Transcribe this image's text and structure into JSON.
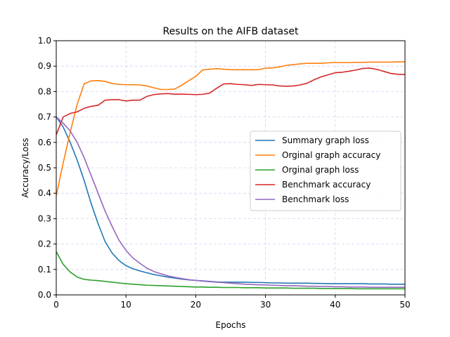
{
  "chart_data": {
    "type": "line",
    "title": "Results on the AIFB dataset",
    "xlabel": "Epochs",
    "ylabel": "Accuracy/Loss",
    "xlim": [
      0,
      50
    ],
    "ylim": [
      0.0,
      1.0
    ],
    "xticks": [
      0,
      10,
      20,
      30,
      40,
      50
    ],
    "yticks": [
      0.0,
      0.1,
      0.2,
      0.3,
      0.4,
      0.5,
      0.6,
      0.7,
      0.8,
      0.9,
      1.0
    ],
    "xtick_labels": [
      "0",
      "10",
      "20",
      "30",
      "40",
      "50"
    ],
    "ytick_labels": [
      "0.0",
      "0.1",
      "0.2",
      "0.3",
      "0.4",
      "0.5",
      "0.6",
      "0.7",
      "0.8",
      "0.9",
      "1.0"
    ],
    "grid": true,
    "legend_position": "center-right",
    "x": [
      0,
      1,
      2,
      3,
      4,
      5,
      6,
      7,
      8,
      9,
      10,
      11,
      12,
      13,
      14,
      15,
      16,
      17,
      18,
      19,
      20,
      21,
      22,
      23,
      24,
      25,
      26,
      27,
      28,
      29,
      30,
      31,
      32,
      33,
      34,
      35,
      36,
      37,
      38,
      39,
      40,
      41,
      42,
      43,
      44,
      45,
      46,
      47,
      48,
      49,
      50
    ],
    "series": [
      {
        "name": "Summary graph loss",
        "color": "#1f77b4",
        "values": [
          0.7,
          0.66,
          0.6,
          0.53,
          0.45,
          0.36,
          0.28,
          0.21,
          0.165,
          0.135,
          0.115,
          0.103,
          0.094,
          0.087,
          0.08,
          0.075,
          0.07,
          0.066,
          0.062,
          0.059,
          0.057,
          0.055,
          0.053,
          0.051,
          0.05,
          0.05,
          0.05,
          0.05,
          0.049,
          0.049,
          0.048,
          0.047,
          0.047,
          0.046,
          0.046,
          0.046,
          0.046,
          0.045,
          0.045,
          0.044,
          0.044,
          0.044,
          0.044,
          0.044,
          0.044,
          0.043,
          0.043,
          0.043,
          0.042,
          0.042,
          0.042
        ]
      },
      {
        "name": "Orginal graph accuracy",
        "color": "#ff7f0e",
        "values": [
          0.39,
          0.52,
          0.64,
          0.75,
          0.83,
          0.842,
          0.843,
          0.84,
          0.832,
          0.828,
          0.827,
          0.827,
          0.826,
          0.822,
          0.815,
          0.808,
          0.808,
          0.81,
          0.825,
          0.843,
          0.86,
          0.885,
          0.888,
          0.89,
          0.888,
          0.886,
          0.886,
          0.886,
          0.886,
          0.886,
          0.892,
          0.893,
          0.897,
          0.903,
          0.906,
          0.909,
          0.911,
          0.911,
          0.911,
          0.913,
          0.914,
          0.914,
          0.914,
          0.915,
          0.915,
          0.916,
          0.916,
          0.916,
          0.916,
          0.917,
          0.917
        ]
      },
      {
        "name": "Orginal graph loss",
        "color": "#2ca02c",
        "values": [
          0.17,
          0.12,
          0.09,
          0.07,
          0.061,
          0.058,
          0.056,
          0.053,
          0.05,
          0.047,
          0.044,
          0.042,
          0.04,
          0.038,
          0.037,
          0.036,
          0.035,
          0.034,
          0.033,
          0.032,
          0.031,
          0.031,
          0.03,
          0.03,
          0.029,
          0.029,
          0.029,
          0.028,
          0.028,
          0.028,
          0.027,
          0.027,
          0.027,
          0.027,
          0.026,
          0.026,
          0.026,
          0.026,
          0.025,
          0.025,
          0.025,
          0.025,
          0.025,
          0.024,
          0.024,
          0.024,
          0.024,
          0.024,
          0.024,
          0.024,
          0.024
        ]
      },
      {
        "name": "Benchmark accuracy",
        "color": "#d62728",
        "values": [
          0.63,
          0.7,
          0.714,
          0.72,
          0.734,
          0.742,
          0.746,
          0.766,
          0.768,
          0.768,
          0.763,
          0.766,
          0.766,
          0.781,
          0.788,
          0.791,
          0.792,
          0.79,
          0.79,
          0.789,
          0.788,
          0.789,
          0.794,
          0.813,
          0.83,
          0.831,
          0.828,
          0.827,
          0.824,
          0.828,
          0.827,
          0.826,
          0.822,
          0.821,
          0.822,
          0.826,
          0.833,
          0.847,
          0.858,
          0.866,
          0.874,
          0.876,
          0.88,
          0.885,
          0.891,
          0.892,
          0.887,
          0.879,
          0.871,
          0.868,
          0.867
        ]
      },
      {
        "name": "Benchmark loss",
        "color": "#9467bd",
        "values": [
          0.7,
          0.675,
          0.645,
          0.6,
          0.54,
          0.47,
          0.4,
          0.33,
          0.27,
          0.215,
          0.175,
          0.145,
          0.124,
          0.105,
          0.092,
          0.083,
          0.075,
          0.069,
          0.064,
          0.06,
          0.057,
          0.054,
          0.052,
          0.05,
          0.048,
          0.046,
          0.044,
          0.042,
          0.041,
          0.04,
          0.039,
          0.038,
          0.037,
          0.036,
          0.036,
          0.035,
          0.034,
          0.034,
          0.033,
          0.033,
          0.032,
          0.032,
          0.031,
          0.031,
          0.031,
          0.03,
          0.03,
          0.03,
          0.03,
          0.03,
          0.03
        ]
      }
    ]
  }
}
